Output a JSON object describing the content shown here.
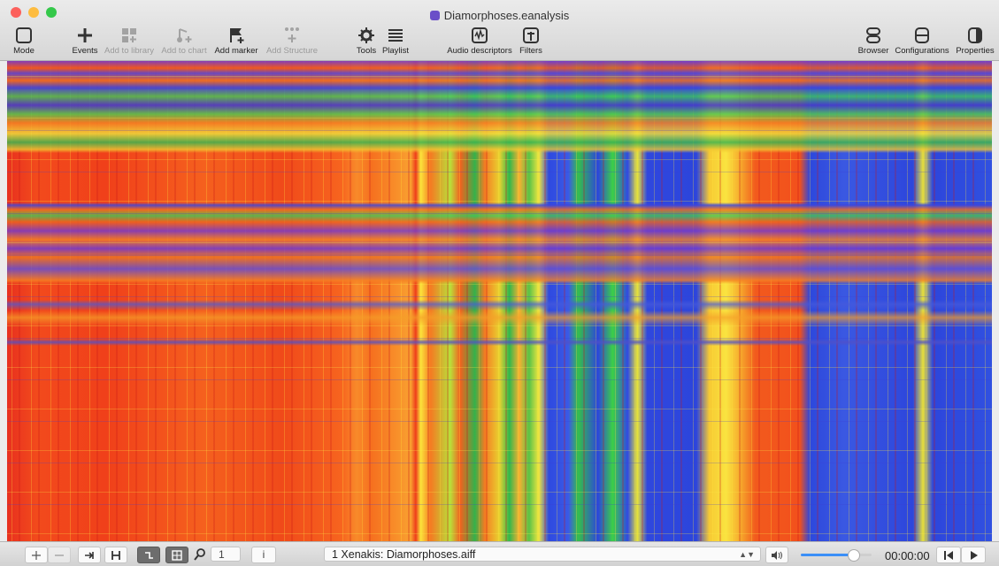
{
  "window": {
    "title": "Diamorphoses.eanalysis"
  },
  "toolbar": {
    "items": [
      {
        "label": "Mode",
        "enabled": true
      },
      {
        "label": "Events",
        "enabled": true
      },
      {
        "label": "Add to library",
        "enabled": false
      },
      {
        "label": "Add to chart",
        "enabled": false
      },
      {
        "label": "Add marker",
        "enabled": true
      },
      {
        "label": "Add Structure",
        "enabled": false
      },
      {
        "label": "Tools",
        "enabled": true
      },
      {
        "label": "Playlist",
        "enabled": true
      },
      {
        "label": "Audio descriptors",
        "enabled": true
      },
      {
        "label": "Filters",
        "enabled": true
      },
      {
        "label": "Browser",
        "enabled": true
      },
      {
        "label": "Configurations",
        "enabled": true
      },
      {
        "label": "Properties",
        "enabled": true
      }
    ]
  },
  "footer": {
    "zoom": "1",
    "info": "i",
    "file": "1 Xenakis: Diamorphoses.aiff",
    "time": "00:00:00"
  }
}
